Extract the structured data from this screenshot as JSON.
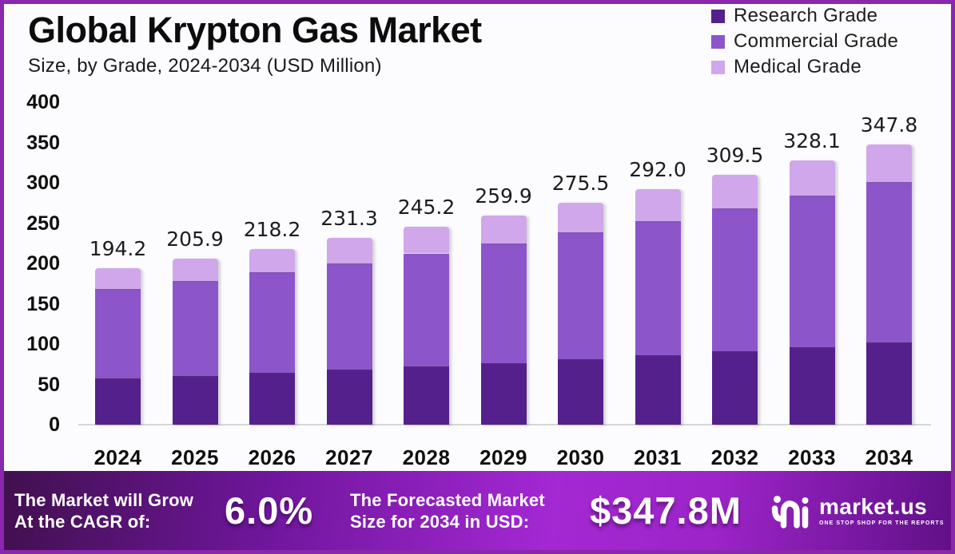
{
  "header": {
    "title": "Global Krypton Gas Market",
    "subtitle": "Size, by Grade, 2024-2034 (USD Million)"
  },
  "legend": {
    "items": [
      {
        "label": "Research Grade",
        "color": "#54208c"
      },
      {
        "label": "Commercial Grade",
        "color": "#8d55ca"
      },
      {
        "label": "Medical Grade",
        "color": "#d0a7ea"
      }
    ]
  },
  "chart_data": {
    "type": "bar",
    "stacked": true,
    "title": "Global Krypton Gas Market",
    "subtitle": "Size, by Grade, 2024-2034 (USD Million)",
    "xlabel": "",
    "ylabel": "USD Million",
    "categories": [
      "2024",
      "2025",
      "2026",
      "2027",
      "2028",
      "2029",
      "2030",
      "2031",
      "2032",
      "2033",
      "2034"
    ],
    "series": [
      {
        "name": "Research Grade",
        "color": "#54208c",
        "values": [
          57.1,
          60.5,
          64.2,
          68.0,
          72.1,
          76.4,
          81.0,
          85.9,
          91.0,
          96.5,
          102.3
        ]
      },
      {
        "name": "Commercial Grade",
        "color": "#8d55ca",
        "values": [
          111.1,
          117.8,
          124.8,
          132.3,
          140.3,
          148.7,
          157.6,
          167.0,
          177.0,
          187.7,
          199.0
        ]
      },
      {
        "name": "Medical Grade",
        "color": "#d0a7ea",
        "values": [
          26.0,
          27.6,
          29.2,
          31.0,
          32.8,
          34.8,
          36.9,
          39.1,
          41.5,
          43.9,
          46.5
        ]
      }
    ],
    "totals": [
      "194.2",
      "205.9",
      "218.2",
      "231.3",
      "245.2",
      "259.9",
      "275.5",
      "292.0",
      "309.5",
      "328.1",
      "347.8"
    ],
    "ylim": [
      0,
      400
    ],
    "y_ticks": [
      0,
      50,
      100,
      150,
      200,
      250,
      300,
      350,
      400
    ],
    "grid": false,
    "legend_position": "top-right"
  },
  "banner": {
    "cagr_label_line1": "The Market will Grow",
    "cagr_label_line2": "At the CAGR of:",
    "cagr_value": "6.0%",
    "forecast_label_line1": "The Forecasted Market",
    "forecast_label_line2": "Size for 2034 in USD:",
    "forecast_value": "$347.8M",
    "logo": {
      "name": "market.us",
      "tagline": "ONE STOP SHOP FOR THE REPORTS",
      "icon": "market-us-wave-icon"
    }
  },
  "colors": {
    "frame_border": "#8928ac",
    "banner_gradient": [
      "#41104e",
      "#6f169c",
      "#a428d3",
      "#9c24c8",
      "#611088"
    ],
    "axis_line": "#d7d7d7",
    "text": "#0c0c0c"
  }
}
